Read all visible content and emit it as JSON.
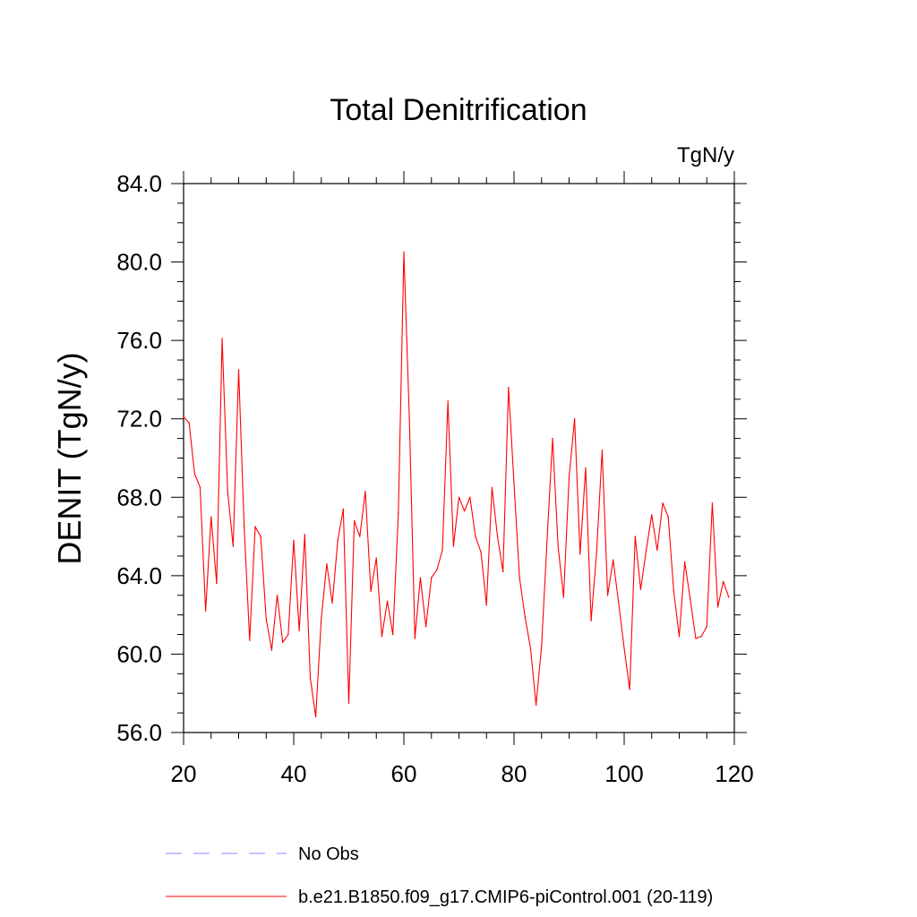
{
  "chart_data": {
    "type": "line",
    "title": "Total Denitrification",
    "units_label": "TgN/y",
    "ylabel": "DENIT  (TgN/y)",
    "xlabel": "",
    "xlim": [
      20,
      120
    ],
    "ylim": [
      56,
      84
    ],
    "x_ticks": [
      20,
      40,
      60,
      80,
      100,
      120
    ],
    "x_tick_labels": [
      "20",
      "40",
      "60",
      "80",
      "100",
      "120"
    ],
    "y_ticks": [
      56,
      60,
      64,
      68,
      72,
      76,
      80,
      84
    ],
    "y_tick_labels": [
      "56.0",
      "60.0",
      "64.0",
      "68.0",
      "72.0",
      "76.0",
      "80.0",
      "84.0"
    ],
    "grid": false,
    "series": [
      {
        "name": "b.e21.B1850.f09_g17.CMIP6-piControl.001 (20-119)",
        "color": "#ff0000",
        "style": "solid",
        "x": [
          20,
          21,
          22,
          23,
          24,
          25,
          26,
          27,
          28,
          29,
          30,
          31,
          32,
          33,
          34,
          35,
          36,
          37,
          38,
          39,
          40,
          41,
          42,
          43,
          44,
          45,
          46,
          47,
          48,
          49,
          50,
          51,
          52,
          53,
          54,
          55,
          56,
          57,
          58,
          59,
          60,
          61,
          62,
          63,
          64,
          65,
          66,
          67,
          68,
          69,
          70,
          71,
          72,
          73,
          74,
          75,
          76,
          77,
          78,
          79,
          80,
          81,
          82,
          83,
          84,
          85,
          86,
          87,
          88,
          89,
          90,
          91,
          92,
          93,
          94,
          95,
          96,
          97,
          98,
          99,
          100,
          101,
          102,
          103,
          104,
          105,
          106,
          107,
          108,
          109,
          110,
          111,
          112,
          113,
          114,
          115,
          116,
          117,
          118,
          119
        ],
        "values": [
          72.1,
          71.8,
          69.2,
          68.5,
          62.2,
          67.0,
          63.6,
          76.1,
          68.3,
          65.5,
          74.5,
          66.5,
          60.7,
          66.5,
          66.0,
          61.8,
          60.2,
          63.0,
          60.6,
          61.0,
          65.8,
          61.2,
          66.1,
          58.8,
          56.8,
          61.8,
          64.6,
          62.6,
          65.8,
          67.4,
          57.5,
          66.8,
          66.0,
          68.3,
          63.2,
          64.9,
          60.9,
          62.7,
          61.0,
          67.2,
          80.5,
          72.0,
          60.8,
          63.9,
          61.4,
          63.9,
          64.3,
          65.3,
          72.9,
          65.5,
          68.0,
          67.3,
          68.0,
          66.0,
          65.2,
          62.5,
          68.5,
          66.0,
          64.2,
          73.6,
          68.7,
          63.9,
          61.9,
          60.3,
          57.4,
          60.4,
          65.8,
          71.0,
          65.5,
          62.9,
          69.0,
          72.0,
          65.1,
          69.5,
          61.7,
          65.2,
          70.4,
          63.0,
          64.8,
          62.6,
          60.3,
          58.2,
          66.0,
          63.3,
          65.3,
          67.1,
          65.3,
          67.7,
          67.0,
          63.2,
          60.9,
          64.7,
          62.8,
          60.8,
          60.9,
          61.4,
          67.7,
          62.4,
          63.7,
          62.9
        ]
      }
    ],
    "legend": {
      "placement": "bottom",
      "entries": [
        {
          "label": "No Obs",
          "color": "#8a8aff",
          "style": "dashed"
        },
        {
          "label": "b.e21.B1850.f09_g17.CMIP6-piControl.001 (20-119)",
          "color": "#ff0000",
          "style": "solid"
        }
      ]
    }
  }
}
